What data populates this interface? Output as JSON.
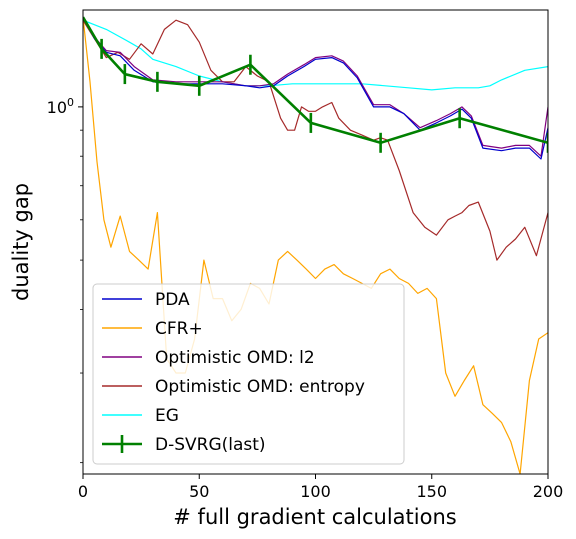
{
  "chart_data": {
    "type": "line",
    "xlabel": "# full gradient calculations",
    "ylabel": "duality gap",
    "xlim": [
      0,
      200
    ],
    "ylim": [
      0.19,
      1.55
    ],
    "yscale": "log",
    "x_ticks": [
      0,
      50,
      100,
      150,
      200
    ],
    "y_tick_label": "10^0",
    "y_tick_value": 1.0,
    "legend_position": "lower-left",
    "series": [
      {
        "name": "PDA",
        "color": "#0000cd",
        "marker": "none",
        "x": [
          0,
          5,
          10,
          16,
          22,
          30,
          40,
          50,
          60,
          70,
          76,
          82,
          88,
          95,
          100,
          107,
          112,
          118,
          125,
          132,
          138,
          145,
          152,
          158,
          163,
          167,
          172,
          180,
          186,
          192,
          197,
          200
        ],
        "y": [
          1.5,
          1.36,
          1.28,
          1.26,
          1.18,
          1.12,
          1.11,
          1.11,
          1.11,
          1.1,
          1.09,
          1.1,
          1.15,
          1.2,
          1.24,
          1.25,
          1.22,
          1.14,
          1.0,
          1.0,
          0.97,
          0.9,
          0.93,
          0.96,
          0.99,
          0.95,
          0.83,
          0.82,
          0.83,
          0.83,
          0.79,
          0.91
        ]
      },
      {
        "name": "CFR+",
        "color": "#ffa500",
        "marker": "none",
        "x": [
          0,
          3,
          6,
          9,
          12,
          16,
          20,
          24,
          28,
          32,
          36,
          40,
          44,
          48,
          52,
          56,
          60,
          64,
          68,
          72,
          76,
          80,
          84,
          88,
          92,
          96,
          100,
          104,
          108,
          112,
          116,
          120,
          124,
          128,
          132,
          136,
          140,
          144,
          148,
          152,
          156,
          160,
          164,
          168,
          172,
          176,
          180,
          184,
          188,
          192,
          196,
          200
        ],
        "y": [
          1.5,
          1.12,
          0.78,
          0.6,
          0.53,
          0.61,
          0.52,
          0.5,
          0.48,
          0.62,
          0.32,
          0.3,
          0.3,
          0.35,
          0.5,
          0.42,
          0.42,
          0.38,
          0.4,
          0.45,
          0.44,
          0.41,
          0.5,
          0.52,
          0.5,
          0.48,
          0.46,
          0.48,
          0.49,
          0.47,
          0.46,
          0.45,
          0.44,
          0.47,
          0.48,
          0.46,
          0.45,
          0.43,
          0.44,
          0.42,
          0.3,
          0.27,
          0.29,
          0.31,
          0.26,
          0.25,
          0.24,
          0.22,
          0.19,
          0.29,
          0.35,
          0.36
        ]
      },
      {
        "name": "Optimistic OMD: l2",
        "color": "#800080",
        "marker": "none",
        "x": [
          0,
          5,
          10,
          16,
          22,
          30,
          40,
          50,
          60,
          70,
          76,
          82,
          88,
          95,
          100,
          107,
          112,
          118,
          125,
          132,
          138,
          145,
          152,
          158,
          163,
          167,
          172,
          180,
          186,
          192,
          197,
          200
        ],
        "y": [
          1.5,
          1.37,
          1.29,
          1.28,
          1.2,
          1.13,
          1.12,
          1.12,
          1.12,
          1.1,
          1.1,
          1.11,
          1.16,
          1.21,
          1.25,
          1.26,
          1.23,
          1.15,
          1.01,
          1.01,
          0.97,
          0.91,
          0.94,
          0.97,
          1.0,
          0.96,
          0.84,
          0.83,
          0.84,
          0.84,
          0.8,
          1.0
        ]
      },
      {
        "name": "Optimistic OMD: entropy",
        "color": "#a52a2a",
        "marker": "none",
        "x": [
          0,
          5,
          10,
          15,
          20,
          25,
          30,
          35,
          40,
          45,
          50,
          55,
          60,
          65,
          70,
          75,
          80,
          85,
          88,
          91,
          94,
          97,
          100,
          103,
          107,
          110,
          115,
          120,
          125,
          128,
          131,
          136,
          142,
          147,
          152,
          157,
          160,
          163,
          166,
          170,
          175,
          178,
          182,
          186,
          190,
          195,
          200
        ],
        "y": [
          1.48,
          1.36,
          1.25,
          1.28,
          1.24,
          1.33,
          1.27,
          1.42,
          1.48,
          1.45,
          1.34,
          1.18,
          1.12,
          1.12,
          1.2,
          1.15,
          1.12,
          0.95,
          0.9,
          0.9,
          1.0,
          0.98,
          0.98,
          1.0,
          1.02,
          0.95,
          0.9,
          0.88,
          0.86,
          0.87,
          0.86,
          0.75,
          0.62,
          0.58,
          0.56,
          0.6,
          0.61,
          0.62,
          0.64,
          0.65,
          0.57,
          0.5,
          0.53,
          0.55,
          0.58,
          0.51,
          0.62
        ]
      },
      {
        "name": "EG",
        "color": "#00ffff",
        "marker": "none",
        "x": [
          0,
          10,
          20,
          25,
          30,
          40,
          50,
          60,
          70,
          80,
          90,
          100,
          110,
          120,
          130,
          140,
          150,
          160,
          170,
          175,
          180,
          190,
          200
        ],
        "y": [
          1.48,
          1.42,
          1.34,
          1.3,
          1.24,
          1.2,
          1.15,
          1.12,
          1.1,
          1.1,
          1.11,
          1.11,
          1.11,
          1.11,
          1.1,
          1.09,
          1.08,
          1.09,
          1.09,
          1.1,
          1.13,
          1.18,
          1.2
        ]
      },
      {
        "name": "D-SVRG(last)",
        "color": "#008000",
        "marker": "errorbar",
        "x": [
          0,
          8,
          18,
          32,
          50,
          72,
          98,
          128,
          162,
          200
        ],
        "y": [
          1.5,
          1.3,
          1.16,
          1.12,
          1.1,
          1.21,
          0.93,
          0.85,
          0.95,
          0.85
        ]
      }
    ]
  }
}
